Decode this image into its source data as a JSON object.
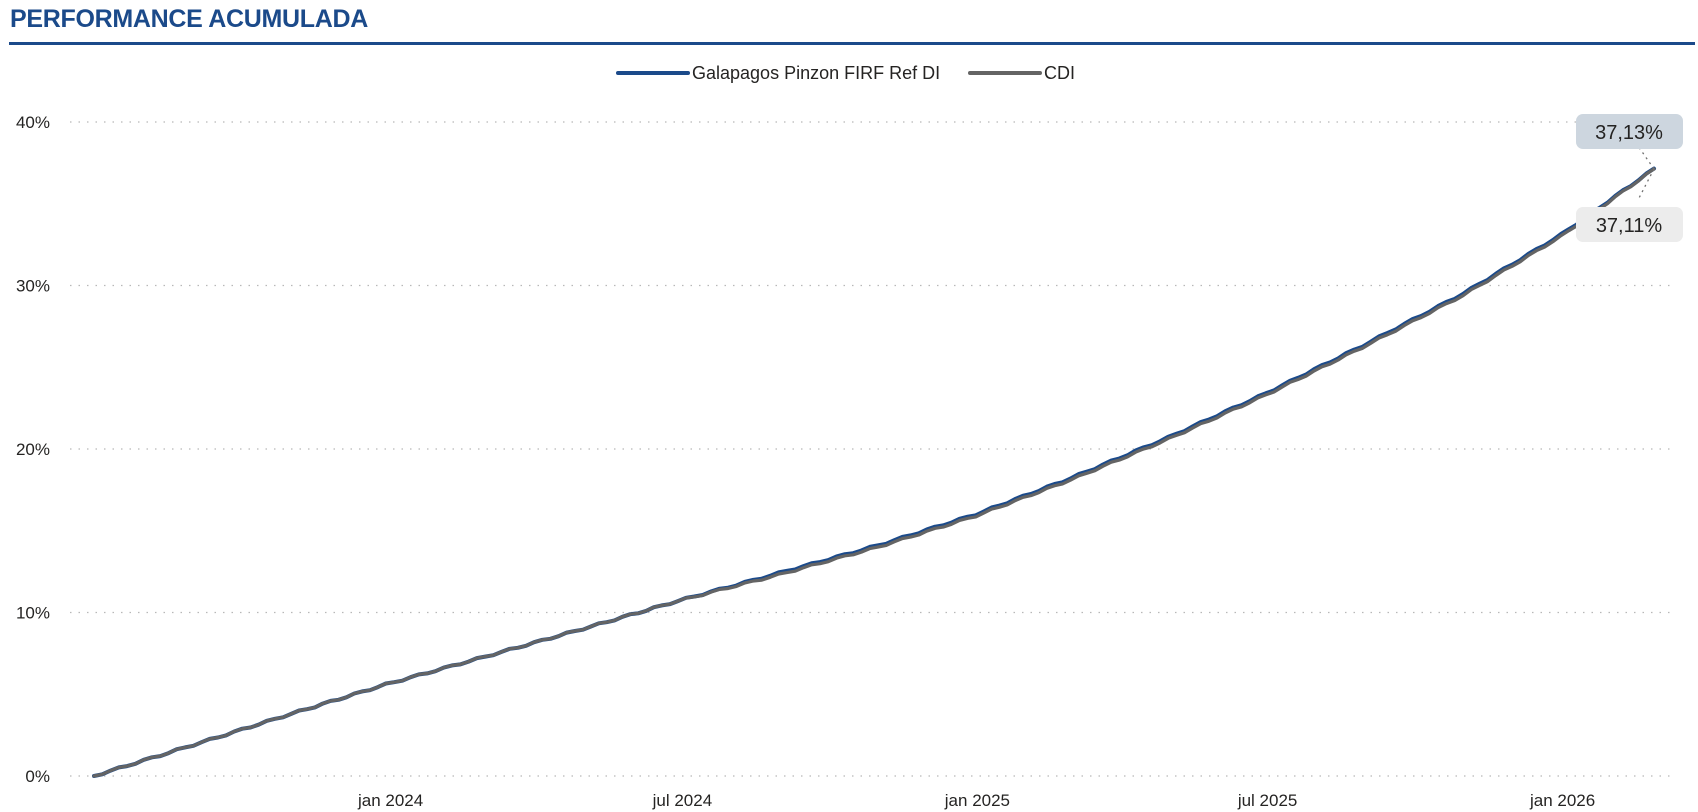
{
  "page": {
    "title": "PERFORMANCE ACUMULADA"
  },
  "colors": {
    "accent": "#1b4a8a",
    "series_fund": "#1b4a8a",
    "series_cdi": "#646464",
    "label_fund_bg": "#cdd6df",
    "label_cdi_bg": "#ececec"
  },
  "chart_data": {
    "type": "line",
    "title": "PERFORMANCE ACUMULADA",
    "xlabel": "",
    "ylabel": "",
    "x_ticks": [
      "jan 2024",
      "jul 2024",
      "jan 2025",
      "jul 2025",
      "jan 2026"
    ],
    "x_tick_dates": [
      "2024-01-01",
      "2024-07-01",
      "2025-01-01",
      "2025-07-01",
      "2026-01-01"
    ],
    "x_range": [
      "2023-06-30",
      "2026-02-27"
    ],
    "y_ticks": [
      "0%",
      "10%",
      "20%",
      "30%",
      "40%"
    ],
    "ylim": [
      0,
      40
    ],
    "y_unit": "%",
    "grid": "horizontal dotted",
    "legend": "top-center",
    "series": [
      {
        "name": "Galapagos Pinzon FIRF Ref DI",
        "color": "#1b4a8a",
        "end_label": "37,13%",
        "x": [
          "2023-06-30",
          "2023-08-31",
          "2023-10-31",
          "2023-12-29",
          "2024-02-29",
          "2024-04-30",
          "2024-06-28",
          "2024-08-30",
          "2024-10-31",
          "2024-12-31",
          "2025-02-28",
          "2025-04-30",
          "2025-06-30",
          "2025-08-29",
          "2025-10-31",
          "2025-12-31",
          "2026-02-27"
        ],
        "y": [
          0.0,
          1.9,
          3.8,
          5.6,
          7.3,
          9.0,
          10.7,
          12.4,
          14.1,
          16.0,
          18.2,
          20.7,
          23.4,
          26.3,
          29.5,
          33.1,
          37.13
        ]
      },
      {
        "name": "CDI",
        "color": "#646464",
        "end_label": "37,11%",
        "x": [
          "2023-06-30",
          "2023-08-31",
          "2023-10-31",
          "2023-12-29",
          "2024-02-29",
          "2024-04-30",
          "2024-06-28",
          "2024-08-30",
          "2024-10-31",
          "2024-12-31",
          "2025-02-28",
          "2025-04-30",
          "2025-06-30",
          "2025-08-29",
          "2025-10-31",
          "2025-12-31",
          "2026-02-27"
        ],
        "y": [
          0.0,
          1.9,
          3.8,
          5.6,
          7.3,
          9.0,
          10.7,
          12.3,
          14.0,
          15.9,
          18.1,
          20.6,
          23.3,
          26.2,
          29.4,
          33.0,
          37.11
        ]
      }
    ]
  }
}
